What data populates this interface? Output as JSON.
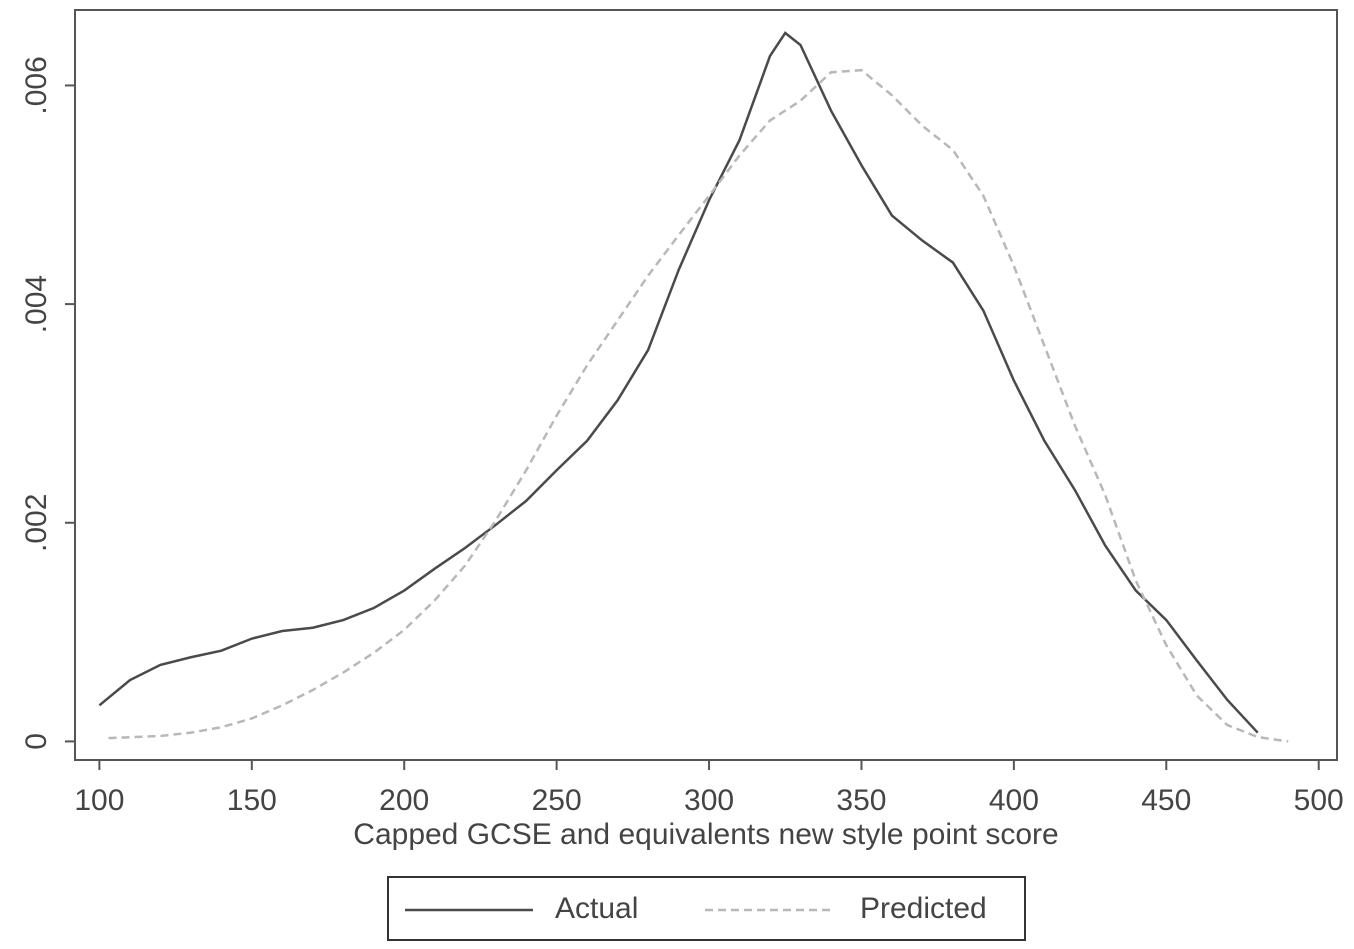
{
  "chart_data": {
    "type": "line",
    "xlabel": "Capped GCSE and equivalents new style point score",
    "xlim": [
      92,
      506
    ],
    "xticks": [
      100,
      150,
      200,
      250,
      300,
      350,
      400,
      450,
      500
    ],
    "ylim": [
      -0.00017,
      0.00669
    ],
    "yticks": [
      0,
      {
        "value": 0.002,
        "label": ".002"
      },
      {
        "value": 0.004,
        "label": ".004"
      },
      {
        "value": 0.006,
        "label": ".006"
      }
    ],
    "series": [
      {
        "name": "Actual",
        "color": "#4a4a4a",
        "style": "solid",
        "x": [
          100,
          110,
          120,
          130,
          140,
          150,
          160,
          170,
          180,
          190,
          200,
          210,
          220,
          230,
          240,
          250,
          260,
          270,
          280,
          290,
          300,
          310,
          320,
          325,
          330,
          340,
          350,
          360,
          370,
          380,
          390,
          400,
          410,
          420,
          430,
          440,
          450,
          460,
          470,
          480
        ],
        "values": [
          0.00033,
          0.00056,
          0.0007,
          0.00077,
          0.00083,
          0.00094,
          0.00101,
          0.00104,
          0.00111,
          0.00122,
          0.00138,
          0.00158,
          0.00177,
          0.00198,
          0.0022,
          0.00248,
          0.00275,
          0.00312,
          0.00358,
          0.00431,
          0.00495,
          0.0055,
          0.00627,
          0.00648,
          0.00637,
          0.00577,
          0.00527,
          0.00481,
          0.00458,
          0.00438,
          0.00394,
          0.0033,
          0.00275,
          0.0023,
          0.00179,
          0.00138,
          0.00111,
          0.00074,
          0.00038,
          8e-05
        ]
      },
      {
        "name": "Predicted",
        "color": "#b8b8b8",
        "style": "dashed",
        "x": [
          103,
          120,
          130,
          140,
          150,
          160,
          170,
          180,
          190,
          200,
          210,
          220,
          230,
          240,
          250,
          260,
          270,
          280,
          290,
          300,
          310,
          320,
          330,
          340,
          350,
          360,
          370,
          380,
          390,
          400,
          410,
          420,
          430,
          440,
          450,
          460,
          470,
          480,
          490
        ],
        "values": [
          3e-05,
          5e-05,
          8e-05,
          0.00013,
          0.00021,
          0.00033,
          0.00047,
          0.00063,
          0.00081,
          0.00102,
          0.00129,
          0.00161,
          0.00202,
          0.00248,
          0.00298,
          0.00344,
          0.00385,
          0.00426,
          0.00463,
          0.00499,
          0.00536,
          0.00568,
          0.00586,
          0.00612,
          0.00614,
          0.00591,
          0.00563,
          0.00541,
          0.00499,
          0.00435,
          0.00362,
          0.00289,
          0.00225,
          0.00147,
          0.00088,
          0.00042,
          0.00015,
          4e-05,
          0
        ]
      }
    ]
  }
}
